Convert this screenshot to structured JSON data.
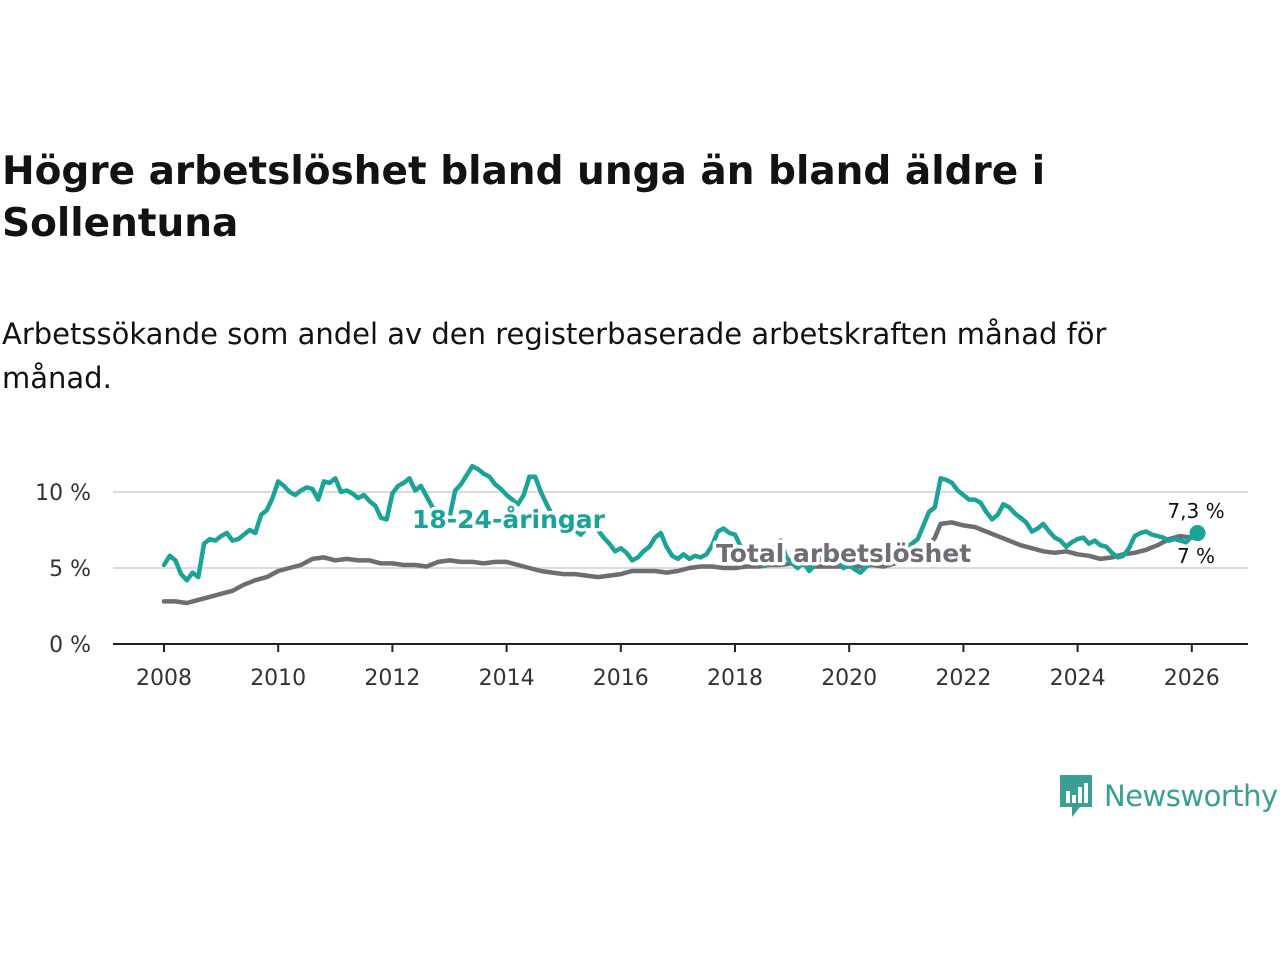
{
  "title": "Högre arbetslöshet bland unga än bland äldre i Sollentuna",
  "subtitle": "Arbetssökande som andel av den registerbaserade arbetskraften månad för månad.",
  "brand": {
    "name": "Newsworthy",
    "icon": "newsworthy-logo-icon",
    "color": "#3a9e93"
  },
  "chart_data": {
    "type": "line",
    "title": "Högre arbetslöshet bland unga än bland äldre i Sollentuna",
    "xlabel": "",
    "ylabel": "",
    "xlim": [
      2008,
      2026.7
    ],
    "ylim": [
      0,
      10
    ],
    "grid": true,
    "x_ticks": [
      {
        "value": 2008,
        "label": "2008"
      },
      {
        "value": 2010,
        "label": "2010"
      },
      {
        "value": 2012,
        "label": "2012"
      },
      {
        "value": 2014,
        "label": "2014"
      },
      {
        "value": 2016,
        "label": "2016"
      },
      {
        "value": 2018,
        "label": "2018"
      },
      {
        "value": 2020,
        "label": "2020"
      },
      {
        "value": 2022,
        "label": "2022"
      },
      {
        "value": 2024,
        "label": "2024"
      },
      {
        "value": 2026,
        "label": "2026"
      }
    ],
    "y_ticks": [
      {
        "value": 0,
        "label": "0 %"
      },
      {
        "value": 5,
        "label": "5 %"
      },
      {
        "value": 10,
        "label": "10 %"
      }
    ],
    "series": [
      {
        "name": "18-24-åringar",
        "label": "18-24-åringar",
        "color": "#1aa396",
        "end_label": "7,3 %",
        "points": [
          [
            2008.0,
            5.2
          ],
          [
            2008.1,
            5.8
          ],
          [
            2008.2,
            5.5
          ],
          [
            2008.3,
            4.6
          ],
          [
            2008.4,
            4.2
          ],
          [
            2008.5,
            4.7
          ],
          [
            2008.6,
            4.4
          ],
          [
            2008.7,
            6.6
          ],
          [
            2008.8,
            6.9
          ],
          [
            2008.9,
            6.8
          ],
          [
            2009.0,
            7.1
          ],
          [
            2009.1,
            7.3
          ],
          [
            2009.2,
            6.8
          ],
          [
            2009.3,
            6.9
          ],
          [
            2009.4,
            7.2
          ],
          [
            2009.5,
            7.5
          ],
          [
            2009.6,
            7.3
          ],
          [
            2009.7,
            8.5
          ],
          [
            2009.8,
            8.8
          ],
          [
            2009.9,
            9.6
          ],
          [
            2010.0,
            10.7
          ],
          [
            2010.1,
            10.4
          ],
          [
            2010.2,
            10.0
          ],
          [
            2010.3,
            9.8
          ],
          [
            2010.4,
            10.1
          ],
          [
            2010.5,
            10.3
          ],
          [
            2010.6,
            10.2
          ],
          [
            2010.7,
            9.5
          ],
          [
            2010.8,
            10.7
          ],
          [
            2010.9,
            10.6
          ],
          [
            2011.0,
            10.9
          ],
          [
            2011.1,
            10.0
          ],
          [
            2011.2,
            10.1
          ],
          [
            2011.3,
            9.9
          ],
          [
            2011.4,
            9.6
          ],
          [
            2011.5,
            9.8
          ],
          [
            2011.6,
            9.4
          ],
          [
            2011.7,
            9.1
          ],
          [
            2011.8,
            8.3
          ],
          [
            2011.9,
            8.2
          ],
          [
            2012.0,
            9.9
          ],
          [
            2012.1,
            10.4
          ],
          [
            2012.2,
            10.6
          ],
          [
            2012.3,
            10.9
          ],
          [
            2012.4,
            10.1
          ],
          [
            2012.5,
            10.4
          ],
          [
            2012.6,
            9.7
          ],
          [
            2012.7,
            9.0
          ],
          [
            2012.8,
            8.8
          ],
          [
            2012.9,
            8.7
          ],
          [
            2013.0,
            8.3
          ],
          [
            2013.1,
            10.1
          ],
          [
            2013.2,
            10.5
          ],
          [
            2013.3,
            11.1
          ],
          [
            2013.4,
            11.7
          ],
          [
            2013.5,
            11.5
          ],
          [
            2013.6,
            11.2
          ],
          [
            2013.7,
            11.0
          ],
          [
            2013.8,
            10.5
          ],
          [
            2013.9,
            10.2
          ],
          [
            2014.0,
            9.8
          ],
          [
            2014.1,
            9.5
          ],
          [
            2014.2,
            9.2
          ],
          [
            2014.3,
            9.8
          ],
          [
            2014.4,
            11.0
          ],
          [
            2014.5,
            11.0
          ],
          [
            2014.6,
            10.0
          ],
          [
            2014.7,
            9.2
          ],
          [
            2014.8,
            8.5
          ],
          [
            2014.9,
            8.0
          ],
          [
            2015.0,
            7.6
          ],
          [
            2015.1,
            7.4
          ],
          [
            2015.2,
            7.5
          ],
          [
            2015.3,
            7.2
          ],
          [
            2015.4,
            7.6
          ],
          [
            2015.5,
            7.9
          ],
          [
            2015.6,
            7.5
          ],
          [
            2015.7,
            7.0
          ],
          [
            2015.8,
            6.6
          ],
          [
            2015.9,
            6.1
          ],
          [
            2016.0,
            6.3
          ],
          [
            2016.1,
            6.0
          ],
          [
            2016.2,
            5.5
          ],
          [
            2016.3,
            5.7
          ],
          [
            2016.4,
            6.1
          ],
          [
            2016.5,
            6.4
          ],
          [
            2016.6,
            7.0
          ],
          [
            2016.7,
            7.3
          ],
          [
            2016.8,
            6.4
          ],
          [
            2016.9,
            5.8
          ],
          [
            2017.0,
            5.6
          ],
          [
            2017.1,
            5.9
          ],
          [
            2017.2,
            5.6
          ],
          [
            2017.3,
            5.8
          ],
          [
            2017.4,
            5.7
          ],
          [
            2017.5,
            5.9
          ],
          [
            2017.6,
            6.5
          ],
          [
            2017.7,
            7.4
          ],
          [
            2017.8,
            7.6
          ],
          [
            2017.9,
            7.3
          ],
          [
            2018.0,
            7.2
          ],
          [
            2018.1,
            6.4
          ],
          [
            2018.2,
            6.2
          ],
          [
            2018.3,
            5.5
          ],
          [
            2018.4,
            5.4
          ],
          [
            2018.5,
            5.2
          ],
          [
            2018.6,
            5.4
          ],
          [
            2018.7,
            6.3
          ],
          [
            2018.8,
            6.8
          ],
          [
            2018.9,
            5.7
          ],
          [
            2019.0,
            5.3
          ],
          [
            2019.1,
            5.0
          ],
          [
            2019.2,
            5.4
          ],
          [
            2019.3,
            4.8
          ],
          [
            2019.4,
            5.2
          ],
          [
            2019.5,
            5.6
          ],
          [
            2019.6,
            6.0
          ],
          [
            2019.7,
            6.1
          ],
          [
            2019.8,
            5.5
          ],
          [
            2019.9,
            5.0
          ],
          [
            2020.0,
            5.2
          ],
          [
            2020.1,
            4.9
          ],
          [
            2020.2,
            4.7
          ],
          [
            2020.3,
            5.1
          ],
          [
            2020.4,
            5.3
          ],
          [
            2020.5,
            5.8
          ],
          [
            2020.6,
            6.0
          ],
          [
            2020.7,
            6.2
          ],
          [
            2020.8,
            6.0
          ],
          [
            2020.9,
            6.1
          ],
          [
            2021.0,
            6.3
          ],
          [
            2021.1,
            6.6
          ],
          [
            2021.2,
            6.9
          ],
          [
            2021.3,
            7.8
          ],
          [
            2021.4,
            8.7
          ],
          [
            2021.5,
            9.0
          ],
          [
            2021.6,
            10.9
          ],
          [
            2021.7,
            10.8
          ],
          [
            2021.8,
            10.6
          ],
          [
            2021.9,
            10.1
          ],
          [
            2022.0,
            9.8
          ],
          [
            2022.1,
            9.5
          ],
          [
            2022.2,
            9.5
          ],
          [
            2022.3,
            9.3
          ],
          [
            2022.4,
            8.7
          ],
          [
            2022.5,
            8.2
          ],
          [
            2022.6,
            8.5
          ],
          [
            2022.7,
            9.2
          ],
          [
            2022.8,
            9.0
          ],
          [
            2022.9,
            8.6
          ],
          [
            2023.0,
            8.3
          ],
          [
            2023.1,
            8.0
          ],
          [
            2023.2,
            7.4
          ],
          [
            2023.3,
            7.6
          ],
          [
            2023.4,
            7.9
          ],
          [
            2023.5,
            7.4
          ],
          [
            2023.6,
            7.0
          ],
          [
            2023.7,
            6.8
          ],
          [
            2023.8,
            6.4
          ],
          [
            2023.9,
            6.7
          ],
          [
            2024.0,
            6.9
          ],
          [
            2024.1,
            7.0
          ],
          [
            2024.2,
            6.6
          ],
          [
            2024.3,
            6.8
          ],
          [
            2024.4,
            6.5
          ],
          [
            2024.5,
            6.4
          ],
          [
            2024.6,
            6.0
          ],
          [
            2024.7,
            5.7
          ],
          [
            2024.8,
            5.8
          ],
          [
            2024.9,
            6.3
          ],
          [
            2025.0,
            7.1
          ],
          [
            2025.1,
            7.3
          ],
          [
            2025.2,
            7.4
          ],
          [
            2025.3,
            7.2
          ],
          [
            2025.4,
            7.1
          ],
          [
            2025.5,
            7.0
          ],
          [
            2025.6,
            6.8
          ],
          [
            2025.7,
            6.9
          ],
          [
            2025.8,
            6.8
          ],
          [
            2025.9,
            6.7
          ],
          [
            2026.0,
            7.1
          ],
          [
            2026.1,
            7.3
          ]
        ]
      },
      {
        "name": "Total arbetslöshet",
        "label": "Total arbetslöshet",
        "color": "#6e6d73",
        "end_label": "7 %",
        "points": [
          [
            2008.0,
            2.8
          ],
          [
            2008.2,
            2.8
          ],
          [
            2008.4,
            2.7
          ],
          [
            2008.6,
            2.9
          ],
          [
            2008.8,
            3.1
          ],
          [
            2009.0,
            3.3
          ],
          [
            2009.2,
            3.5
          ],
          [
            2009.4,
            3.9
          ],
          [
            2009.6,
            4.2
          ],
          [
            2009.8,
            4.4
          ],
          [
            2010.0,
            4.8
          ],
          [
            2010.2,
            5.0
          ],
          [
            2010.4,
            5.2
          ],
          [
            2010.5,
            5.4
          ],
          [
            2010.6,
            5.6
          ],
          [
            2010.8,
            5.7
          ],
          [
            2011.0,
            5.5
          ],
          [
            2011.2,
            5.6
          ],
          [
            2011.4,
            5.5
          ],
          [
            2011.6,
            5.5
          ],
          [
            2011.8,
            5.3
          ],
          [
            2012.0,
            5.3
          ],
          [
            2012.2,
            5.2
          ],
          [
            2012.4,
            5.2
          ],
          [
            2012.6,
            5.1
          ],
          [
            2012.8,
            5.4
          ],
          [
            2013.0,
            5.5
          ],
          [
            2013.2,
            5.4
          ],
          [
            2013.4,
            5.4
          ],
          [
            2013.6,
            5.3
          ],
          [
            2013.8,
            5.4
          ],
          [
            2014.0,
            5.4
          ],
          [
            2014.2,
            5.2
          ],
          [
            2014.4,
            5.0
          ],
          [
            2014.6,
            4.8
          ],
          [
            2014.8,
            4.7
          ],
          [
            2015.0,
            4.6
          ],
          [
            2015.2,
            4.6
          ],
          [
            2015.4,
            4.5
          ],
          [
            2015.6,
            4.4
          ],
          [
            2015.8,
            4.5
          ],
          [
            2016.0,
            4.6
          ],
          [
            2016.2,
            4.8
          ],
          [
            2016.4,
            4.8
          ],
          [
            2016.6,
            4.8
          ],
          [
            2016.8,
            4.7
          ],
          [
            2017.0,
            4.8
          ],
          [
            2017.2,
            5.0
          ],
          [
            2017.4,
            5.1
          ],
          [
            2017.6,
            5.1
          ],
          [
            2017.8,
            5.0
          ],
          [
            2018.0,
            5.0
          ],
          [
            2018.2,
            5.1
          ],
          [
            2018.4,
            5.1
          ],
          [
            2018.6,
            5.2
          ],
          [
            2018.8,
            5.2
          ],
          [
            2019.0,
            5.3
          ],
          [
            2019.2,
            5.2
          ],
          [
            2019.4,
            5.1
          ],
          [
            2019.6,
            5.1
          ],
          [
            2019.8,
            5.1
          ],
          [
            2020.0,
            5.1
          ],
          [
            2020.2,
            5.1
          ],
          [
            2020.4,
            5.2
          ],
          [
            2020.6,
            5.1
          ],
          [
            2020.8,
            5.3
          ],
          [
            2021.0,
            5.5
          ],
          [
            2021.2,
            5.9
          ],
          [
            2021.4,
            6.5
          ],
          [
            2021.5,
            7.0
          ],
          [
            2021.6,
            7.9
          ],
          [
            2021.8,
            8.0
          ],
          [
            2022.0,
            7.8
          ],
          [
            2022.2,
            7.7
          ],
          [
            2022.4,
            7.4
          ],
          [
            2022.6,
            7.1
          ],
          [
            2022.8,
            6.8
          ],
          [
            2023.0,
            6.5
          ],
          [
            2023.2,
            6.3
          ],
          [
            2023.4,
            6.1
          ],
          [
            2023.6,
            6.0
          ],
          [
            2023.8,
            6.1
          ],
          [
            2024.0,
            5.9
          ],
          [
            2024.2,
            5.8
          ],
          [
            2024.4,
            5.6
          ],
          [
            2024.6,
            5.7
          ],
          [
            2024.8,
            5.9
          ],
          [
            2025.0,
            6.0
          ],
          [
            2025.2,
            6.2
          ],
          [
            2025.4,
            6.5
          ],
          [
            2025.6,
            6.9
          ],
          [
            2025.8,
            7.1
          ],
          [
            2026.0,
            7.0
          ],
          [
            2026.1,
            7.0
          ]
        ]
      }
    ]
  }
}
